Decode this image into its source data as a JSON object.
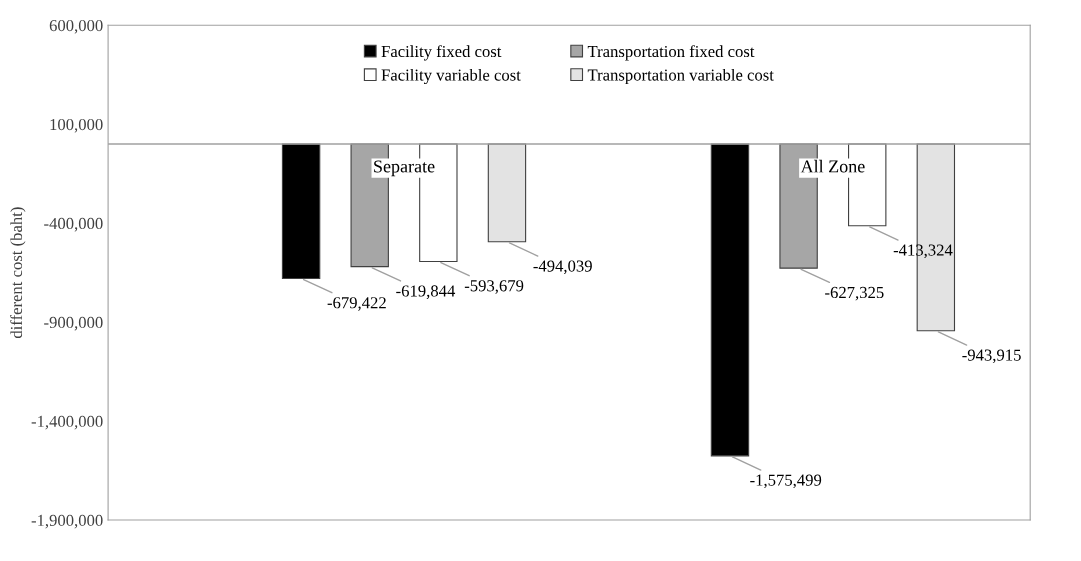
{
  "chart_data": {
    "type": "bar",
    "ylabel": "different cost (baht)",
    "categories": [
      "Separate",
      "All Zone"
    ],
    "series": [
      {
        "name": "Facility fixed cost",
        "color": "#000000",
        "values": [
          -679422,
          -1575499
        ],
        "value_labels": [
          "-679,422",
          "-1,575,499"
        ]
      },
      {
        "name": "Transportation fixed cost",
        "color": "#a6a6a6",
        "values": [
          -619844,
          -627325
        ],
        "value_labels": [
          "-619,844",
          "-627,325"
        ]
      },
      {
        "name": "Facility variable cost",
        "color": "#ffffff",
        "values": [
          -593679,
          -413324
        ],
        "value_labels": [
          "-593,679",
          "-413,324"
        ]
      },
      {
        "name": "Transportation variable cost",
        "color": "#e3e3e3",
        "values": [
          -494039,
          -943915
        ],
        "value_labels": [
          "-494,039",
          "-943,915"
        ]
      }
    ],
    "ylim": [
      -1900000,
      600000
    ],
    "yticks": [
      {
        "value": 600000,
        "label": "600,000"
      },
      {
        "value": 100000,
        "label": "100,000"
      },
      {
        "value": -400000,
        "label": "-400,000"
      },
      {
        "value": -900000,
        "label": "-900,000"
      },
      {
        "value": -1400000,
        "label": "-1,400,000"
      },
      {
        "value": -1900000,
        "label": "-1,900,000"
      }
    ],
    "legend": "top",
    "grid": false
  }
}
